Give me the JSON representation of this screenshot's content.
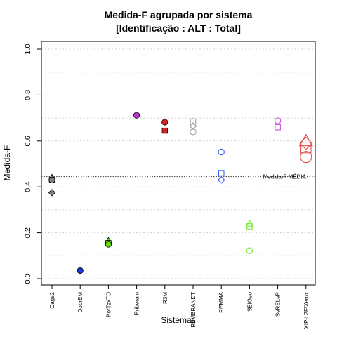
{
  "chart_data": {
    "type": "scatter",
    "title_line1": "Medida-F agrupada por sistema",
    "title_line2": "[Identificação : ALT : Total]",
    "xlabel": "Sistemas",
    "ylabel": "Medida-F",
    "ylim": [
      0.0,
      1.0
    ],
    "yticks": [
      "0.0",
      "0.2",
      "0.4",
      "0.6",
      "0.8",
      "1.0"
    ],
    "grid": "horizontal dotted",
    "categories": [
      "Cage2",
      "DobrEM",
      "PorTexTO",
      "Priberam",
      "R3M",
      "REMBRANDT",
      "REMMA",
      "SEIGeo",
      "SeRELeP",
      "XIP-L2F/Xerox"
    ],
    "reference_line": {
      "value": 0.445,
      "label": "Medida-F MÉDIA"
    },
    "series": [
      {
        "category": "Cage2",
        "color": "#808080",
        "filled": true,
        "points": [
          {
            "shape": "triangle",
            "y": 0.44
          },
          {
            "shape": "square",
            "y": 0.43
          },
          {
            "shape": "circle",
            "y": 0.43
          },
          {
            "shape": "diamond",
            "y": 0.375
          }
        ]
      },
      {
        "category": "DobrEM",
        "color": "#1a3adb",
        "filled": true,
        "points": [
          {
            "shape": "circle",
            "y": 0.035
          }
        ]
      },
      {
        "category": "PorTexTO",
        "color": "#66e000",
        "filled": true,
        "points": [
          {
            "shape": "triangle",
            "y": 0.165
          },
          {
            "shape": "square",
            "y": 0.155
          },
          {
            "shape": "circle",
            "y": 0.15
          }
        ]
      },
      {
        "category": "Priberam",
        "color": "#c030d0",
        "filled": true,
        "points": [
          {
            "shape": "circle",
            "y": 0.712
          }
        ]
      },
      {
        "category": "R3M",
        "color": "#dd2020",
        "filled": true,
        "points": [
          {
            "shape": "circle",
            "y": 0.682
          },
          {
            "shape": "square",
            "y": 0.645
          }
        ]
      },
      {
        "category": "REMBRANDT",
        "color": "#a0a0a0",
        "filled": false,
        "points": [
          {
            "shape": "square",
            "y": 0.685
          },
          {
            "shape": "diamond",
            "y": 0.665
          },
          {
            "shape": "circle",
            "y": 0.64
          }
        ]
      },
      {
        "category": "REMMA",
        "color": "#3a60f0",
        "filled": false,
        "points": [
          {
            "shape": "circle",
            "y": 0.552
          },
          {
            "shape": "square",
            "y": 0.46
          },
          {
            "shape": "diamond",
            "y": 0.43
          }
        ]
      },
      {
        "category": "SEIGeo",
        "color": "#80e040",
        "filled": false,
        "points": [
          {
            "shape": "triangle",
            "y": 0.24
          },
          {
            "shape": "square",
            "y": 0.228
          },
          {
            "shape": "circle",
            "y": 0.122
          }
        ]
      },
      {
        "category": "SeRELeP",
        "color": "#d050d8",
        "filled": false,
        "points": [
          {
            "shape": "circle",
            "y": 0.688
          },
          {
            "shape": "square",
            "y": 0.66
          }
        ]
      },
      {
        "category": "XIP-L2F/Xerox",
        "color": "#e05050",
        "filled": false,
        "points": [
          {
            "shape": "triangle",
            "y": 0.6,
            "big": true
          },
          {
            "shape": "diamond",
            "y": 0.59,
            "big": true
          },
          {
            "shape": "square",
            "y": 0.57,
            "big": true
          },
          {
            "shape": "circle",
            "y": 0.53,
            "big": true
          }
        ]
      }
    ]
  }
}
